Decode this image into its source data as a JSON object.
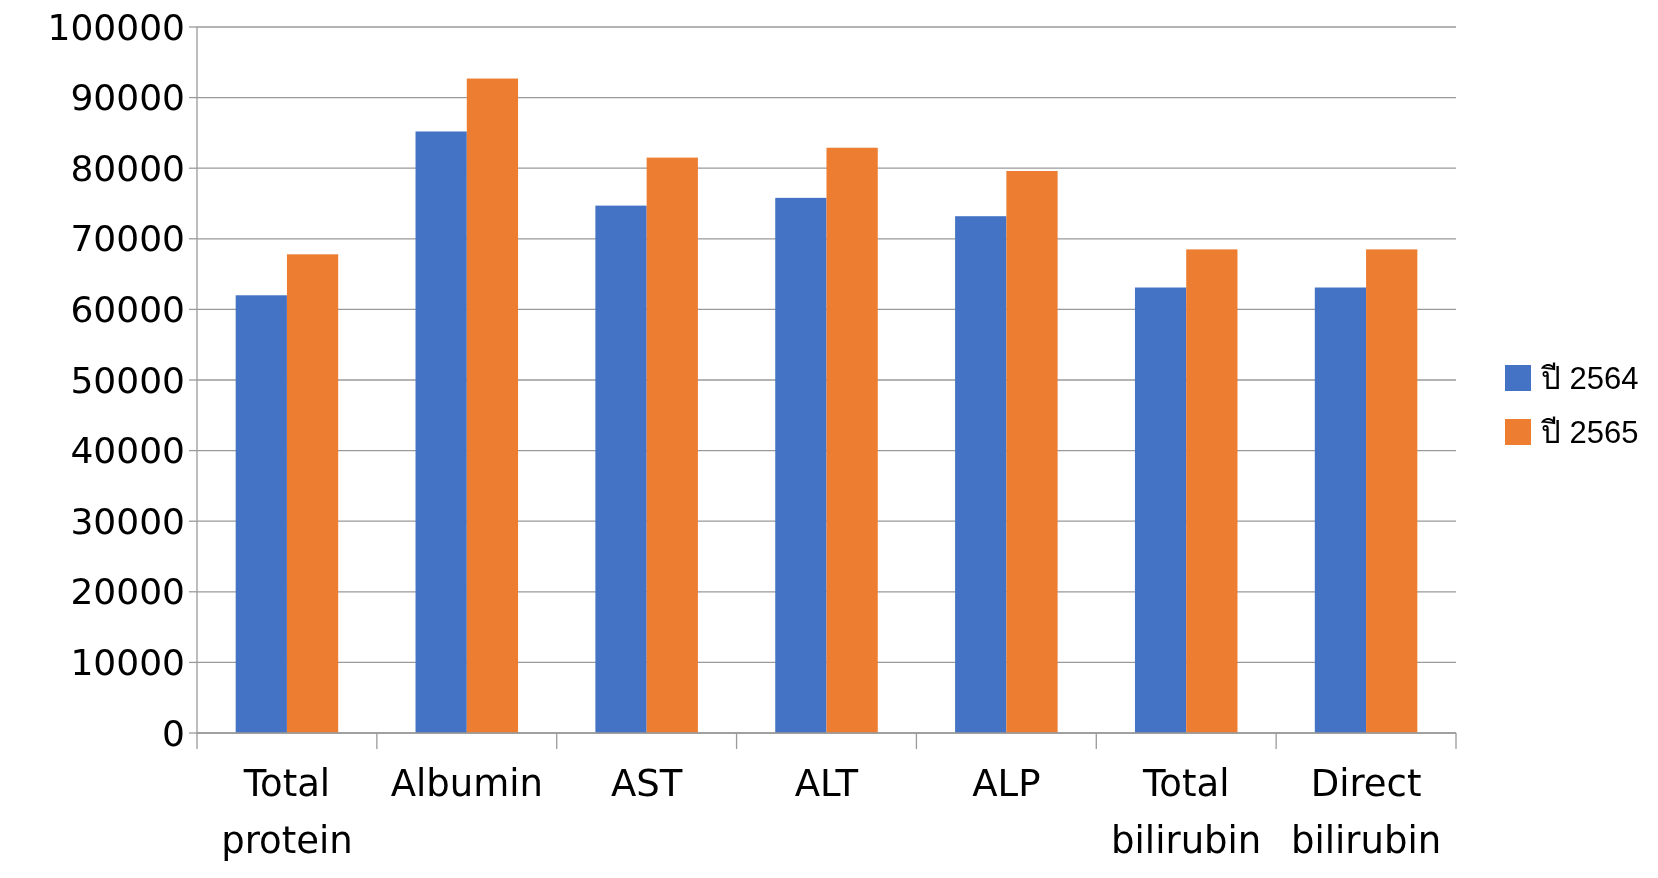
{
  "chart_data": {
    "type": "bar",
    "categories": [
      "Total protein",
      "Albumin",
      "AST",
      "ALT",
      "ALP",
      "Total bilirubin",
      "Direct bilirubin"
    ],
    "series": [
      {
        "name": "ปี 2564",
        "color": "#4472c4",
        "values": [
          62000,
          85200,
          74700,
          75800,
          73200,
          63100,
          63100
        ]
      },
      {
        "name": "ปี 2565",
        "color": "#ed7d31",
        "values": [
          67800,
          92700,
          81500,
          82900,
          79600,
          68500,
          68500
        ]
      }
    ],
    "ylim": [
      0,
      100000
    ],
    "yticks": [
      0,
      10000,
      20000,
      30000,
      40000,
      50000,
      60000,
      70000,
      80000,
      90000,
      100000
    ],
    "grid": "y",
    "legend": "right"
  }
}
